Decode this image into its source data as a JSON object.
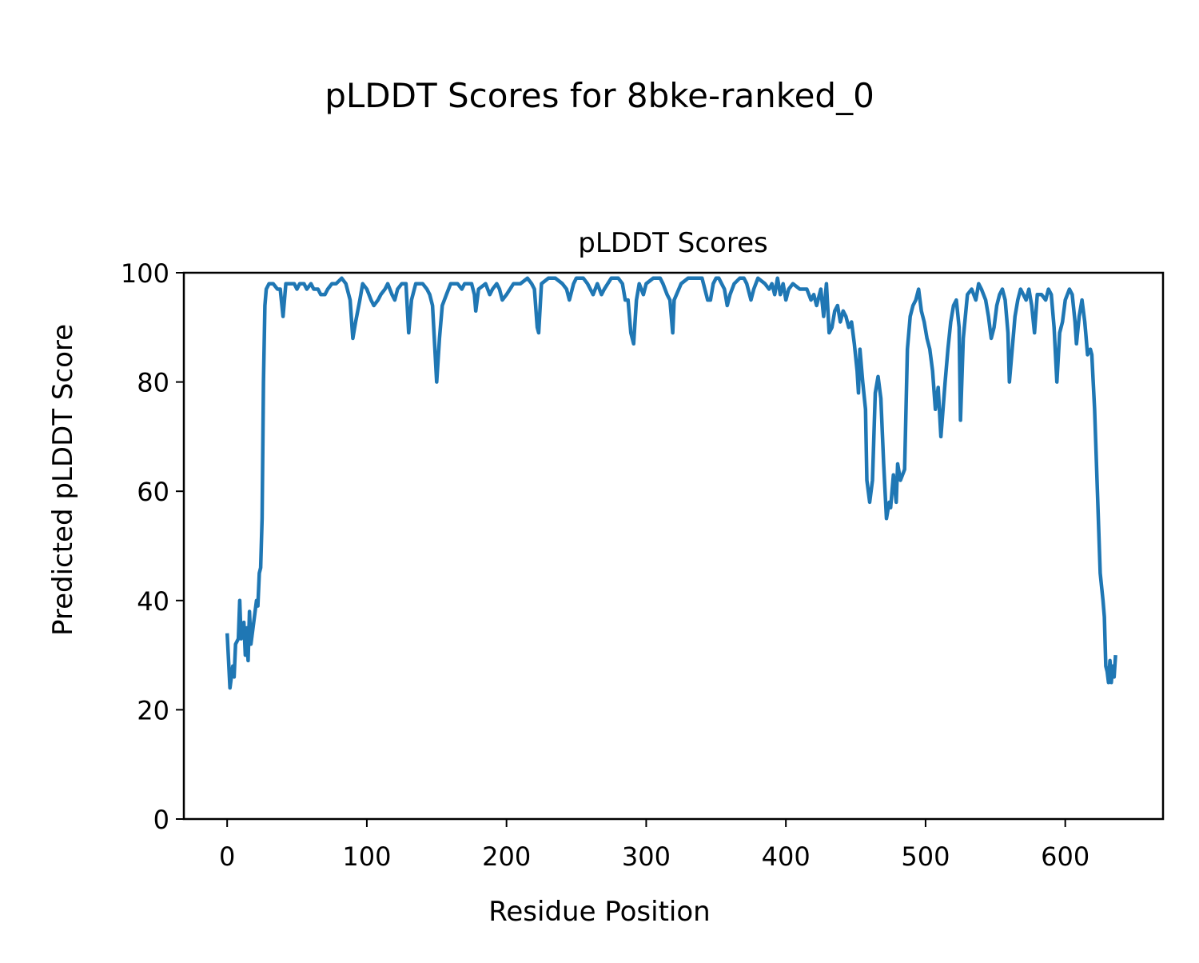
{
  "figure_title": "pLDDT Scores for 8bke-ranked_0",
  "chart_data": {
    "type": "line",
    "title": "pLDDT Scores",
    "xlabel": "Residue Position",
    "ylabel": "Predicted pLDDT Score",
    "xlim": [
      -31,
      670
    ],
    "ylim": [
      0,
      100
    ],
    "xticks": [
      0,
      100,
      200,
      300,
      400,
      500,
      600
    ],
    "yticks": [
      0,
      20,
      40,
      60,
      80,
      100
    ],
    "grid": false,
    "color": "#1f77b4",
    "x": [
      0,
      2,
      4,
      5,
      6,
      8,
      9,
      10,
      12,
      13,
      14,
      15,
      16,
      17,
      19,
      21,
      22,
      23,
      24,
      25,
      26,
      27,
      28,
      30,
      33,
      36,
      38,
      40,
      42,
      45,
      48,
      50,
      52,
      55,
      57,
      60,
      62,
      65,
      67,
      70,
      72,
      75,
      78,
      82,
      85,
      88,
      90,
      92,
      95,
      97,
      100,
      103,
      105,
      108,
      110,
      113,
      115,
      118,
      120,
      122,
      125,
      128,
      130,
      132,
      135,
      138,
      140,
      143,
      145,
      147,
      150,
      152,
      154,
      157,
      160,
      165,
      168,
      170,
      173,
      175,
      177,
      178,
      180,
      185,
      188,
      190,
      193,
      195,
      197,
      200,
      205,
      208,
      210,
      215,
      218,
      220,
      222,
      223,
      225,
      230,
      235,
      240,
      243,
      245,
      248,
      250,
      255,
      258,
      260,
      262,
      265,
      268,
      270,
      275,
      280,
      283,
      285,
      287,
      289,
      291,
      293,
      295,
      298,
      300,
      305,
      310,
      312,
      315,
      317,
      319,
      320,
      325,
      330,
      335,
      340,
      342,
      344,
      346,
      348,
      350,
      352,
      356,
      358,
      360,
      363,
      367,
      370,
      372,
      375,
      377,
      380,
      385,
      388,
      390,
      392,
      394,
      396,
      398,
      400,
      402,
      405,
      410,
      415,
      418,
      420,
      422,
      425,
      427,
      429,
      431,
      433,
      435,
      437,
      439,
      441,
      443,
      445,
      447,
      449,
      451,
      452,
      453,
      455,
      457,
      458,
      460,
      462,
      464,
      466,
      468,
      470,
      472,
      474,
      475,
      477,
      479,
      480,
      482,
      485,
      487,
      489,
      491,
      493,
      495,
      497,
      499,
      501,
      503,
      505,
      507,
      509,
      511,
      514,
      516,
      518,
      520,
      522,
      524,
      525,
      527,
      530,
      533,
      536,
      538,
      540,
      543,
      545,
      547,
      549,
      551,
      553,
      555,
      557,
      559,
      560,
      562,
      564,
      566,
      568,
      570,
      572,
      574,
      576,
      578,
      580,
      583,
      586,
      588,
      590,
      592,
      594,
      596,
      598,
      600,
      603,
      605,
      607,
      608,
      610,
      612,
      614,
      616,
      618,
      619,
      621,
      623,
      625,
      627,
      628,
      629,
      630,
      631,
      632,
      633,
      634,
      635,
      636
    ],
    "y": [
      34,
      24,
      28,
      26,
      32,
      33,
      40,
      33,
      36,
      30,
      35,
      29,
      38,
      32,
      36,
      40,
      39,
      45,
      46,
      55,
      80,
      94,
      97,
      98,
      98,
      97,
      97,
      92,
      98,
      98,
      98,
      97,
      98,
      98,
      97,
      98,
      97,
      97,
      96,
      96,
      97,
      98,
      98,
      99,
      98,
      95,
      88,
      91,
      95,
      98,
      97,
      95,
      94,
      95,
      96,
      97,
      98,
      96,
      95,
      97,
      98,
      98,
      89,
      95,
      98,
      98,
      98,
      97,
      96,
      94,
      80,
      88,
      94,
      96,
      98,
      98,
      97,
      98,
      98,
      98,
      96,
      93,
      97,
      98,
      96,
      97,
      98,
      97,
      95,
      96,
      98,
      98,
      98,
      99,
      98,
      97,
      90,
      89,
      98,
      99,
      99,
      98,
      97,
      95,
      98,
      99,
      99,
      98,
      97,
      96,
      98,
      96,
      97,
      99,
      99,
      98,
      95,
      95,
      89,
      87,
      95,
      98,
      96,
      98,
      99,
      99,
      98,
      96,
      95,
      89,
      95,
      98,
      99,
      99,
      99,
      97,
      95,
      95,
      98,
      99,
      99,
      97,
      94,
      96,
      98,
      99,
      99,
      98,
      95,
      97,
      99,
      98,
      97,
      98,
      96,
      99,
      96,
      98,
      95,
      97,
      98,
      97,
      97,
      95,
      96,
      94,
      97,
      92,
      98,
      89,
      90,
      93,
      94,
      91,
      93,
      92,
      90,
      91,
      87,
      82,
      78,
      86,
      80,
      75,
      62,
      58,
      62,
      78,
      81,
      77,
      65,
      55,
      58,
      57,
      63,
      58,
      65,
      62,
      64,
      86,
      92,
      94,
      95,
      97,
      93,
      91,
      88,
      86,
      82,
      75,
      79,
      70,
      80,
      86,
      91,
      94,
      95,
      90,
      73,
      88,
      96,
      97,
      95,
      98,
      97,
      95,
      92,
      88,
      90,
      94,
      96,
      97,
      95,
      89,
      80,
      86,
      92,
      95,
      97,
      96,
      95,
      97,
      94,
      89,
      96,
      96,
      95,
      97,
      96,
      90,
      80,
      89,
      91,
      95,
      97,
      96,
      91,
      87,
      92,
      95,
      91,
      85,
      86,
      85,
      75,
      60,
      45,
      40,
      37,
      28,
      27,
      25,
      29,
      25,
      28,
      26,
      30
    ]
  }
}
